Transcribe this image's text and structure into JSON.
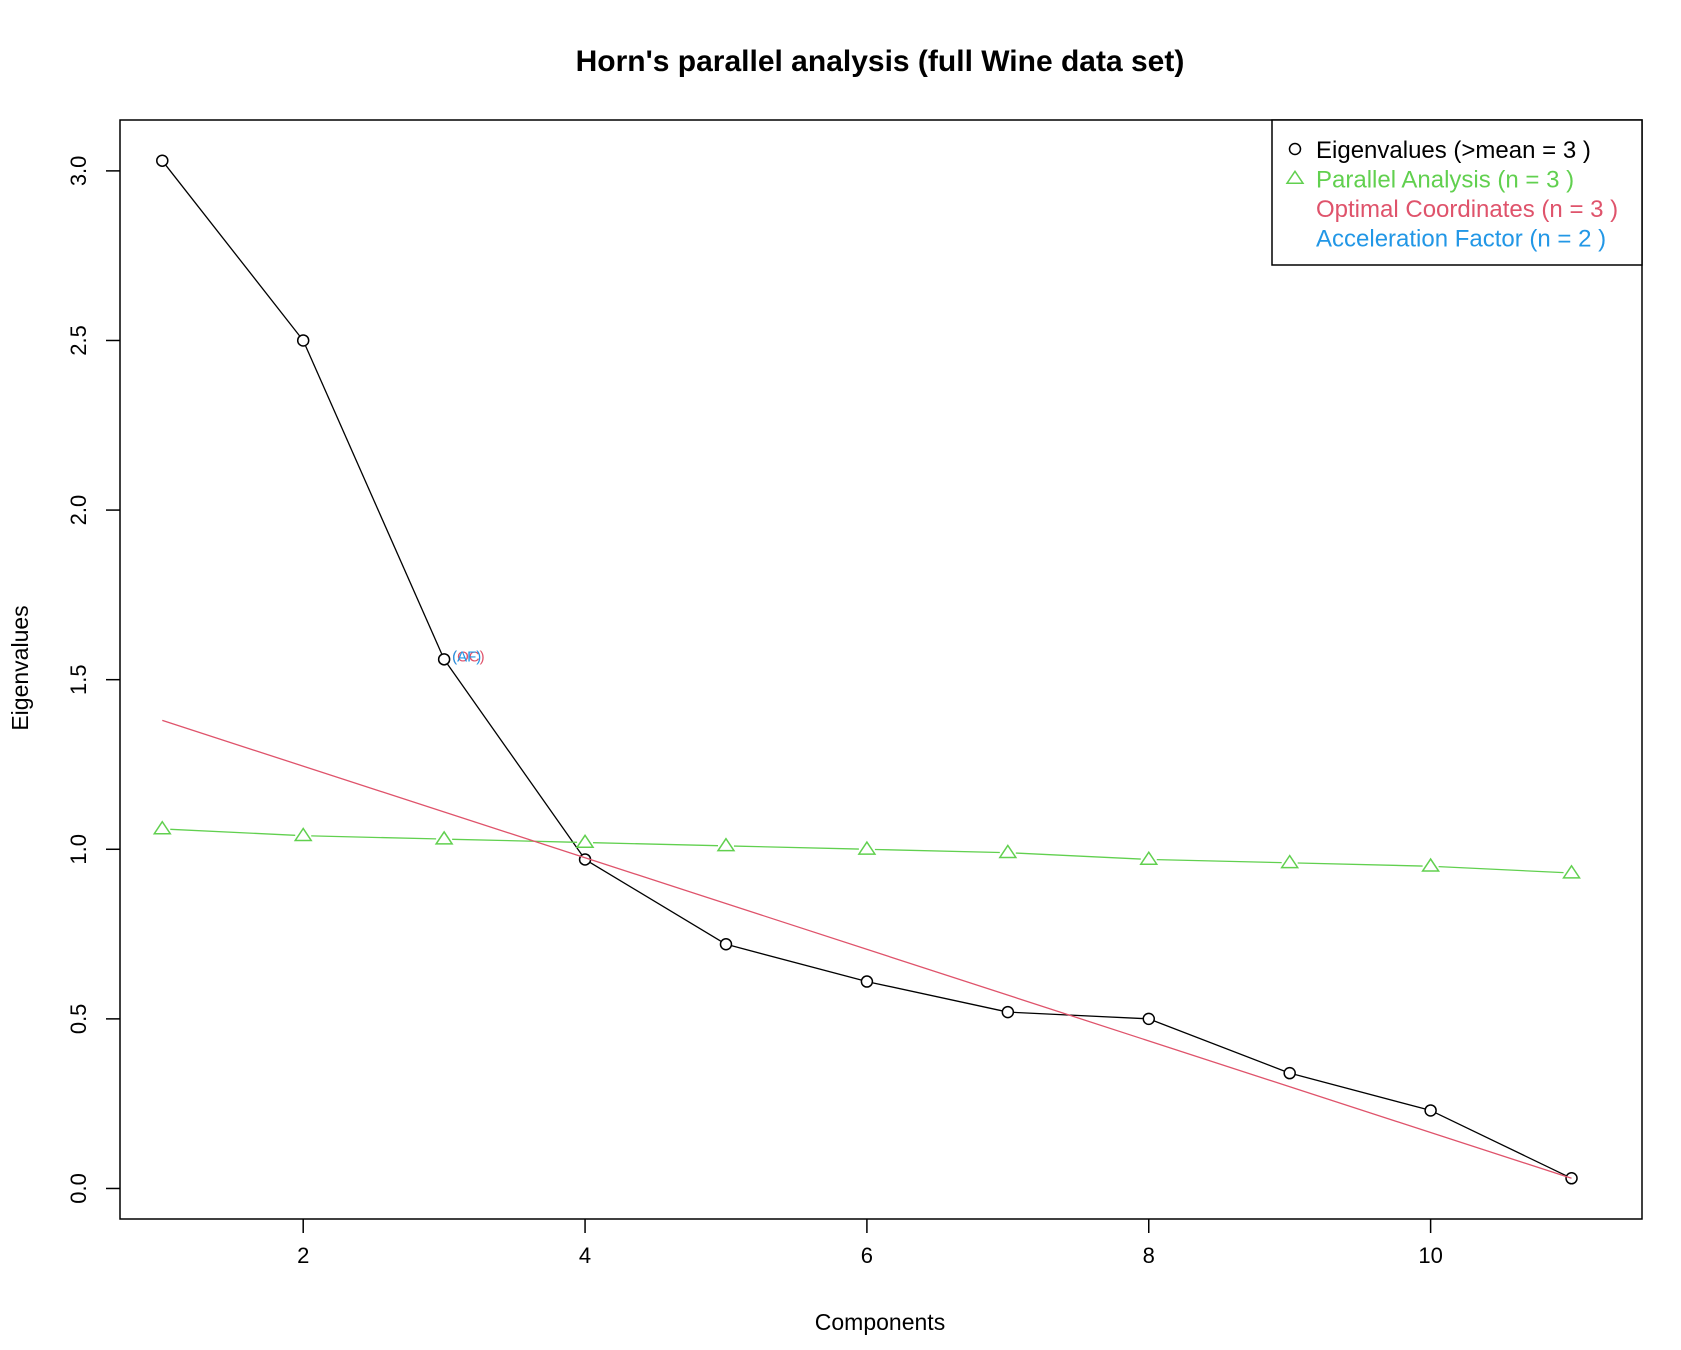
{
  "chart_data": {
    "type": "line",
    "title": "Horn's parallel analysis (full Wine data set)",
    "xlabel": "Components",
    "ylabel": "Eigenvalues",
    "xlim": [
      0.7,
      11.5
    ],
    "ylim": [
      -0.09,
      3.15
    ],
    "xticks": [
      2,
      4,
      6,
      8,
      10
    ],
    "yticks": [
      0.0,
      0.5,
      1.0,
      1.5,
      2.0,
      2.5,
      3.0
    ],
    "grid": false,
    "legend_position": "top-right",
    "series": [
      {
        "name": "Eigenvalues (>mean  =  3 )",
        "color": "#000000",
        "marker": "circle",
        "x": [
          1,
          2,
          3,
          4,
          5,
          6,
          7,
          8,
          9,
          10,
          11
        ],
        "values": [
          3.03,
          2.5,
          1.56,
          0.97,
          0.72,
          0.61,
          0.52,
          0.5,
          0.34,
          0.23,
          0.03
        ]
      },
      {
        "name": "Parallel Analysis (n =  3 )",
        "color": "#61d04f",
        "marker": "triangle",
        "x": [
          1,
          2,
          3,
          4,
          5,
          6,
          7,
          8,
          9,
          10,
          11
        ],
        "values": [
          1.06,
          1.04,
          1.03,
          1.02,
          1.01,
          1.0,
          0.99,
          0.97,
          0.96,
          0.95,
          0.93
        ]
      },
      {
        "name": "Optimal Coordinates (n =  3 )",
        "color": "#df536b",
        "marker": "none",
        "x": [
          1,
          11
        ],
        "values": [
          1.38,
          0.03
        ]
      },
      {
        "name": "Acceleration Factor (n =  2 )",
        "color": "#2297e6",
        "marker": "none",
        "x": [],
        "values": []
      }
    ],
    "annotations": [
      {
        "text": "(OC)",
        "x": 3,
        "y": 1.56,
        "color": "#df536b"
      },
      {
        "text": "(AF)",
        "x": 3,
        "y": 1.56,
        "color": "#2297e6"
      }
    ]
  }
}
